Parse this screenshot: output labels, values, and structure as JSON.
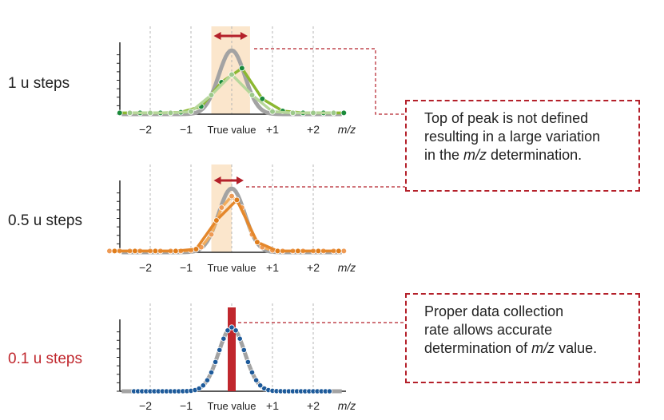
{
  "rows": [
    {
      "label": "1 u steps",
      "label_color": "#222222",
      "step": 1.0,
      "fine_curve": false,
      "peak_window": true,
      "sampled_series": [
        {
          "x": [
            -2.75,
            -2.25,
            -1.75,
            -1.25,
            -0.75,
            -0.25,
            0.25,
            0.75,
            1.25,
            1.75,
            2.25,
            2.75
          ],
          "y": [
            0.02,
            0.02,
            0.02,
            0.03,
            0.12,
            0.5,
            0.72,
            0.24,
            0.05,
            0.02,
            0.02,
            0.02
          ],
          "line_color": "#8cb832",
          "marker_color": "#1a8a3a"
        },
        {
          "x": [
            -2.5,
            -2.0,
            -1.5,
            -1.0,
            -0.5,
            0.0,
            0.5,
            1.0,
            1.5,
            2.0,
            2.5
          ],
          "y": [
            0.02,
            0.02,
            0.02,
            0.04,
            0.3,
            0.62,
            0.3,
            0.04,
            0.02,
            0.02,
            0.02
          ],
          "line_color": "#b6d79a",
          "marker_color": "#9cc98a"
        }
      ]
    },
    {
      "label": "0.5 u steps",
      "label_color": "#222222",
      "step": 0.5,
      "fine_curve": false,
      "peak_window": true,
      "sampled_series": [
        {
          "x": [
            -3.0,
            -2.75,
            -2.5,
            -2.25,
            -2.0,
            -1.75,
            -1.5,
            -1.25,
            -1.0,
            -0.75,
            -0.5,
            -0.25,
            0.0,
            0.25,
            0.5,
            0.75,
            1.0,
            1.25,
            1.5,
            1.75,
            2.0,
            2.25,
            2.5,
            2.75
          ],
          "y": [
            0.02,
            0.02,
            0.02,
            0.02,
            0.02,
            0.02,
            0.02,
            0.02,
            0.03,
            0.08,
            0.28,
            0.7,
            0.88,
            0.7,
            0.28,
            0.08,
            0.03,
            0.02,
            0.02,
            0.02,
            0.02,
            0.02,
            0.02,
            0.02
          ],
          "line_color": "#f2ad5e",
          "marker_color": "#ee9a54"
        },
        {
          "x": [
            -2.875,
            -2.375,
            -1.875,
            -1.375,
            -0.875,
            -0.375,
            0.125,
            0.625,
            1.125,
            1.625,
            2.125,
            2.625
          ],
          "y": [
            0.02,
            0.02,
            0.02,
            0.02,
            0.05,
            0.5,
            0.82,
            0.16,
            0.02,
            0.02,
            0.02,
            0.02
          ],
          "line_color": "#e4872b",
          "marker_color": "#e07d1b"
        }
      ]
    },
    {
      "label": "0.1 u steps",
      "label_color": "#c0272d",
      "step": 0.1,
      "fine_curve": true,
      "peak_window": false,
      "true_value_bar": true,
      "marker_color": "#1d5a9a"
    }
  ],
  "axis": {
    "ticks": [
      {
        "x": -2,
        "label": "−2"
      },
      {
        "x": -1,
        "label": "−1"
      },
      {
        "x": 1,
        "label": "+1"
      },
      {
        "x": 2,
        "label": "+2"
      }
    ],
    "true_value_label": "True value",
    "unit_label": "m/z"
  },
  "peak_color": "#a3a3a3",
  "window_color": "#fbe6cc",
  "arrow_color": "#b4202a",
  "callouts": [
    {
      "line1": "Top of peak is not defined",
      "line2": "resulting in a large variation",
      "line3_pre": "in the ",
      "line3_em": "m/z",
      "line3_post": " determination."
    },
    {
      "line1": "Proper data collection",
      "line2": "rate allows accurate",
      "line3_pre": "determination of ",
      "line3_em": "m/z",
      "line3_post": " value."
    }
  ]
}
